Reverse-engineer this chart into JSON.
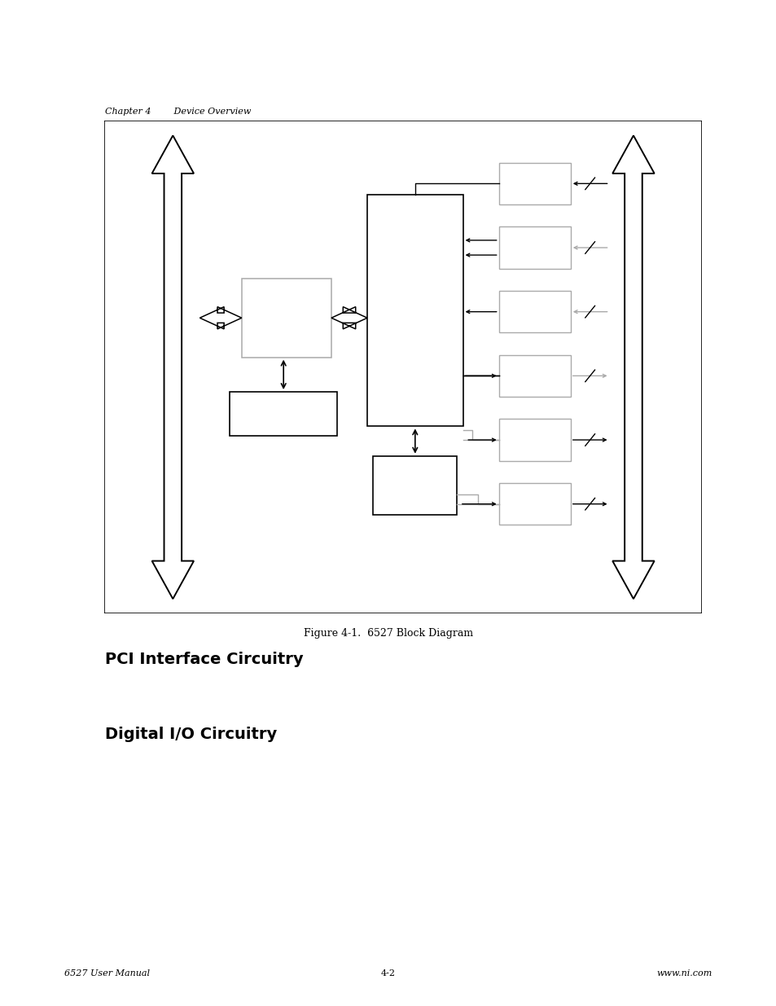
{
  "page_width": 9.54,
  "page_height": 12.35,
  "bg_color": "#ffffff",
  "lc": "#000000",
  "gc": "#aaaaaa",
  "header_text": "Chapter 4        Device Overview",
  "figure_caption": "Figure 4-1.  6527 Block Diagram",
  "section1_title": "PCI Interface Circuitry",
  "section2_title": "Digital I/O Circuitry",
  "footer_left": "6527 User Manual",
  "footer_center": "4-2",
  "footer_right": "www.ni.com"
}
